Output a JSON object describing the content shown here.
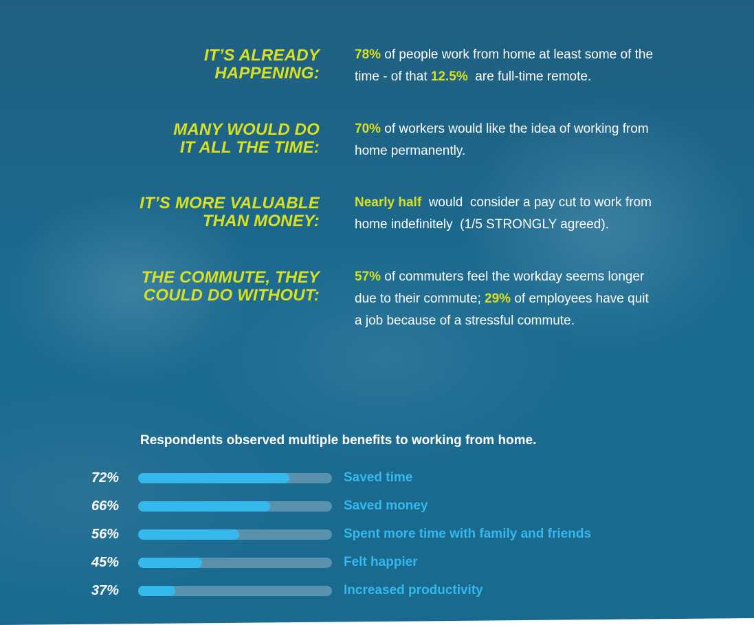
{
  "stats": [
    {
      "heading_line1": "IT’S ALREADY",
      "heading_line2": "HAPPENING:",
      "text": [
        {
          "t": "78%",
          "hl": true
        },
        {
          "t": " of people work from home at least some of the time - of that ",
          "hl": false
        },
        {
          "t": "12.5%",
          "hl": true
        },
        {
          "t": "  are full-time remote.",
          "hl": false
        }
      ]
    },
    {
      "heading_line1": "MANY WOULD DO",
      "heading_line2": "IT ALL THE TIME:",
      "text": [
        {
          "t": "70%",
          "hl": true
        },
        {
          "t": " of workers would like the idea of working from home permanently.",
          "hl": false
        }
      ]
    },
    {
      "heading_line1": "IT’S MORE VALUABLE",
      "heading_line2": "THAN MONEY:",
      "text": [
        {
          "t": "Nearly half",
          "hl": true
        },
        {
          "t": "  would  consider a pay cut to work from home indefinitely  (1/5 STRONGLY agreed).",
          "hl": false
        }
      ]
    },
    {
      "heading_line1": "THE COMMUTE, THEY",
      "heading_line2": "COULD DO WITHOUT:",
      "text": [
        {
          "t": "57%",
          "hl": true
        },
        {
          "t": " of commuters feel the workday seems longer due to their commute; ",
          "hl": false
        },
        {
          "t": "29%",
          "hl": true
        },
        {
          "t": " of employees have quit a job because of a stressful commute.",
          "hl": false
        }
      ]
    }
  ],
  "benefits_title": "Respondents observed multiple benefits to working from home.",
  "chart_data": {
    "type": "bar",
    "title": "Respondents observed multiple benefits to working from home.",
    "categories": [
      "Saved time",
      "Saved money",
      "Spent more time with family and friends",
      "Felt happier",
      "Increased productivity"
    ],
    "values": [
      72,
      66,
      56,
      45,
      37
    ],
    "value_labels": [
      "72%",
      "66%",
      "56%",
      "45%",
      "37%"
    ],
    "bar_fill_fraction": [
      0.78,
      0.68,
      0.52,
      0.33,
      0.19
    ]
  },
  "colors": {
    "background": "#1d6385",
    "highlight": "#d8e021",
    "bar_fill": "#35b8ec",
    "bar_track": "#5a91ad",
    "text": "#ffffff"
  }
}
